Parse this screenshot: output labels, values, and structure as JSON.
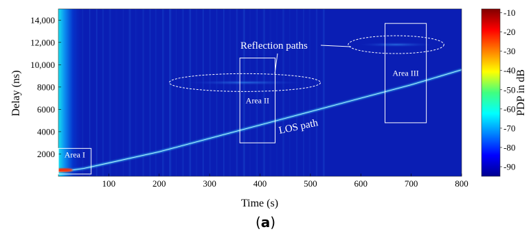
{
  "chart_data": {
    "type": "heatmap",
    "title": "",
    "xlabel": "Time (s)",
    "ylabel": "Delay (ns)",
    "xlim": [
      0,
      800
    ],
    "ylim": [
      0,
      15000
    ],
    "xticks": [
      100,
      200,
      300,
      400,
      500,
      600,
      700,
      800
    ],
    "yticks": [
      2000,
      4000,
      6000,
      8000,
      10000,
      12000,
      14000
    ],
    "ytick_labels": [
      "2000",
      "4000",
      "6000",
      "8000",
      "10,000",
      "12,000",
      "14,000"
    ],
    "colorbar": {
      "label": "PDP in dB",
      "range": [
        -95,
        -8
      ],
      "ticks": [
        -10,
        -20,
        -30,
        -40,
        -50,
        -60,
        -70,
        -80,
        -90
      ],
      "colormap": "jet"
    },
    "background_level_db": -85,
    "los_path": {
      "label": "LOS path",
      "x": [
        0,
        50,
        100,
        200,
        300,
        400,
        500,
        600,
        700,
        800
      ],
      "y": [
        400,
        700,
        1200,
        2200,
        3400,
        4600,
        5800,
        7000,
        8200,
        9550
      ]
    },
    "reflection_paths": {
      "label": "Reflection paths",
      "clusters": [
        {
          "x_range": [
            220,
            520
          ],
          "delay_center": 8400
        },
        {
          "x_range": [
            575,
            765
          ],
          "delay_center": 11800
        }
      ]
    },
    "areas": [
      {
        "label": "Area I",
        "x_range": [
          0,
          65
        ],
        "delay_range": [
          200,
          2500
        ]
      },
      {
        "label": "Area II",
        "x_range": [
          360,
          430
        ],
        "delay_range": [
          3000,
          10600
        ]
      },
      {
        "label": "Area III",
        "x_range": [
          648,
          730
        ],
        "delay_range": [
          4800,
          13700
        ]
      }
    ],
    "grid": false,
    "legend": "none"
  },
  "caption": {
    "open": "(",
    "letter": "a",
    "close": ")"
  }
}
